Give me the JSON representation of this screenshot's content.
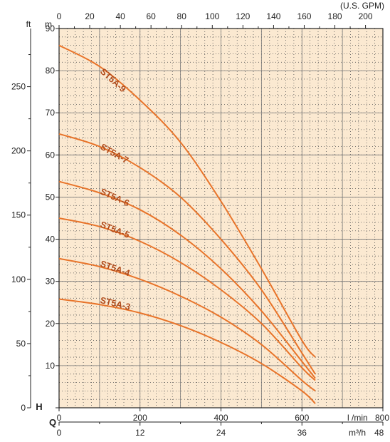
{
  "chart_data": {
    "type": "line",
    "colors": {
      "plot_bg": "#fbe9d1",
      "grid": "#555555",
      "curve": "#e8742a",
      "label": "#b04a1a"
    },
    "axes": {
      "head_m": {
        "unit": "m",
        "range": [
          0,
          90
        ],
        "ticks": [
          "0",
          "10",
          "20",
          "30",
          "40",
          "50",
          "60",
          "70",
          "80",
          "90"
        ]
      },
      "head_ft": {
        "unit": "ft",
        "range": [
          0,
          295.3
        ],
        "ticks": [
          "0",
          "50",
          "100",
          "150",
          "200",
          "250"
        ]
      },
      "flow_gpm": {
        "unit": "(U.S. GPM)",
        "range": [
          0,
          209.3
        ],
        "ticks": [
          "0",
          "20",
          "40",
          "60",
          "80",
          "100",
          "120",
          "140",
          "160",
          "180",
          "200"
        ]
      },
      "flow_lmin": {
        "unit": "l /min",
        "range": [
          0,
          800
        ],
        "ticks": [
          "0",
          "200",
          "400",
          "600",
          "800"
        ]
      },
      "flow_m3h": {
        "unit": "m³/h",
        "range": [
          0,
          48
        ],
        "ticks": [
          "0",
          "12",
          "24",
          "36",
          "48"
        ]
      },
      "symbols": {
        "head": "H",
        "flow": "Q"
      }
    },
    "grid": true,
    "series": [
      {
        "name": "ST5A-9",
        "x": [
          0,
          100,
          200,
          300,
          400,
          500,
          600,
          633
        ],
        "y": [
          86,
          81,
          73,
          63,
          49,
          33,
          16,
          12
        ]
      },
      {
        "name": "ST5A-7",
        "x": [
          0,
          100,
          200,
          300,
          400,
          500,
          600,
          633
        ],
        "y": [
          65,
          62,
          57,
          50,
          40,
          28,
          13,
          8
        ]
      },
      {
        "name": "ST5A-6",
        "x": [
          0,
          100,
          200,
          300,
          400,
          500,
          600,
          633
        ],
        "y": [
          53.7,
          51,
          47,
          41,
          33,
          23,
          11,
          7
        ]
      },
      {
        "name": "ST5A-5",
        "x": [
          0,
          100,
          200,
          300,
          400,
          500,
          600,
          633
        ],
        "y": [
          45,
          43,
          39.5,
          34.5,
          28,
          20,
          9.5,
          6.5
        ]
      },
      {
        "name": "ST5A-4",
        "x": [
          0,
          100,
          200,
          300,
          400,
          500,
          600,
          633
        ],
        "y": [
          35.4,
          33.5,
          30.5,
          26.5,
          21.5,
          15,
          6.5,
          4
        ]
      },
      {
        "name": "ST5A-3",
        "x": [
          0,
          100,
          200,
          300,
          400,
          500,
          600,
          633
        ],
        "y": [
          25.8,
          24.5,
          22.5,
          19.5,
          15.5,
          10.5,
          4,
          1
        ]
      }
    ]
  }
}
